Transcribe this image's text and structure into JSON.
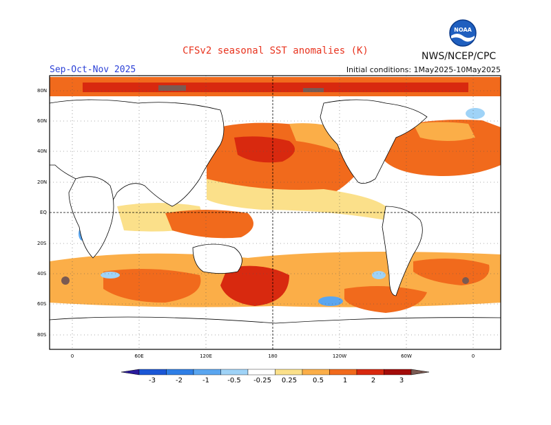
{
  "title": "CFSv2 seasonal SST anomalies (K)",
  "organization": "NWS/NCEP/CPC",
  "logo_text": "NOAA",
  "season": "Sep-Oct-Nov 2025",
  "initial_conditions": "Initial conditions: 1May2025-10May2025",
  "lat_labels": [
    "80N",
    "60N",
    "40N",
    "20N",
    "EQ",
    "20S",
    "40S",
    "60S",
    "80S"
  ],
  "lon_labels": [
    "0",
    "60E",
    "120E",
    "180",
    "120W",
    "60W",
    "0"
  ],
  "colorbar": {
    "labels": [
      "-3",
      "-2",
      "-1",
      "-0.5",
      "-0.25",
      "0.25",
      "0.5",
      "1",
      "2",
      "3"
    ],
    "colors": [
      "#2a1a9c",
      "#1b57d6",
      "#2f7fe6",
      "#5aa6f0",
      "#9fd3f7",
      "#ffffff",
      "#fbe08a",
      "#fbae48",
      "#f16a1c",
      "#d8290f",
      "#a30c0a",
      "#7a5a52"
    ]
  }
}
